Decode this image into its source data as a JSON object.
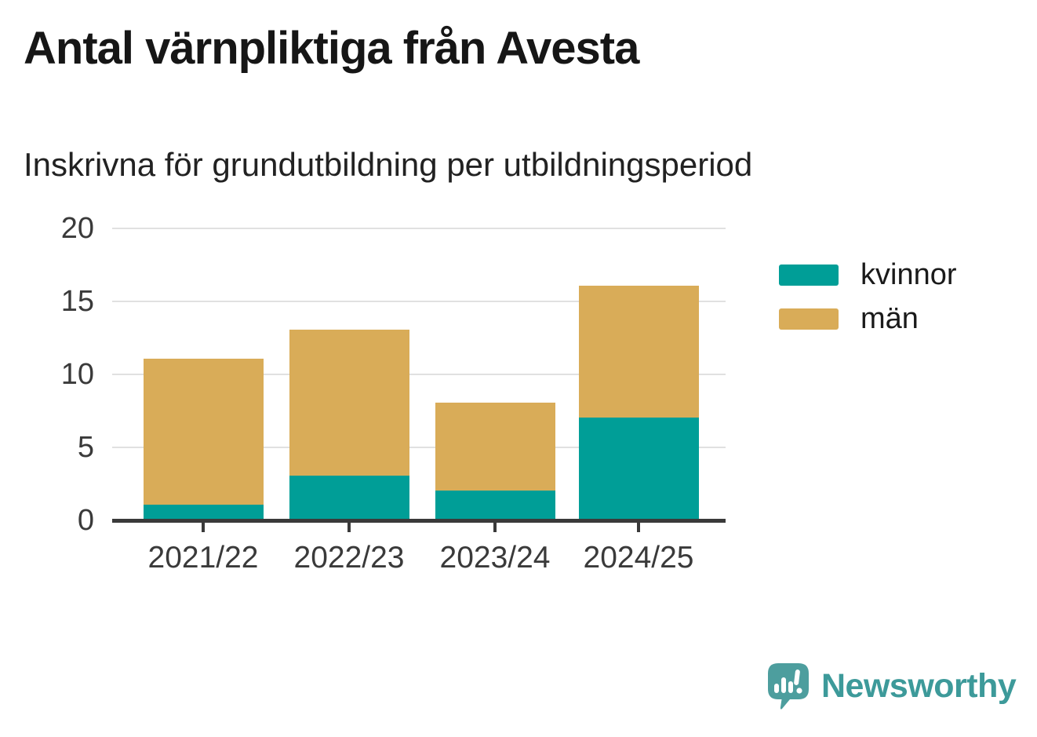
{
  "header": {
    "title": "Antal värnpliktiga från Avesta",
    "subtitle": "Inskrivna för grundutbildning per utbildningsperiod"
  },
  "chart_data": {
    "type": "bar",
    "stacked": true,
    "title": "Antal värnpliktiga från Avesta",
    "subtitle": "Inskrivna för grundutbildning per utbildningsperiod",
    "categories": [
      "2021/22",
      "2022/23",
      "2023/24",
      "2024/25"
    ],
    "series": [
      {
        "name": "kvinnor",
        "color": "#009e97",
        "values": [
          1,
          3,
          2,
          7
        ]
      },
      {
        "name": "män",
        "color": "#d9ac58",
        "values": [
          10,
          10,
          6,
          9
        ]
      }
    ],
    "totals": [
      11,
      13,
      8,
      16
    ],
    "xlabel": "",
    "ylabel": "",
    "ylim": [
      0,
      20
    ],
    "yticks": [
      0,
      5,
      10,
      15,
      20
    ],
    "grid": true,
    "legend_position": "right"
  },
  "legend": {
    "items": [
      {
        "label": "kvinnor",
        "color": "#009e97"
      },
      {
        "label": "män",
        "color": "#d9ac58"
      }
    ]
  },
  "footer": {
    "brand": "Newsworthy",
    "logo_icon": "speech-bubble-bar-chart-exclamation"
  },
  "colors": {
    "series_kvinnor": "#009e97",
    "series_man": "#d9ac58",
    "gridline": "#e1e1e1",
    "axis": "#3a3a3a",
    "title_text": "#161616",
    "brand_teal": "#3d9a9a",
    "logo_teal": "#4d9e9e"
  }
}
